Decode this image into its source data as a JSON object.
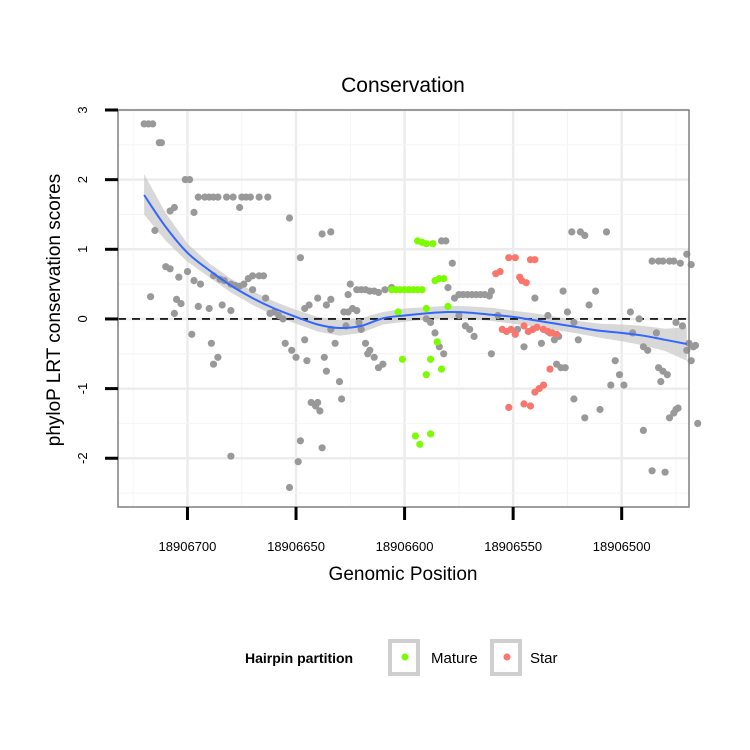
{
  "chart_data": {
    "type": "scatter",
    "title": "Conservation",
    "xlabel": "Genomic Position",
    "ylabel": "phyloP LRT conservation scores",
    "x_reversed": true,
    "xlim": [
      18906732,
      18906469
    ],
    "ylim": [
      -2.7,
      3.0
    ],
    "x_ticks": [
      18906700,
      18906650,
      18906600,
      18906550,
      18906500
    ],
    "x_tick_labels": [
      "18906700",
      "18906650",
      "18906600",
      "18906550",
      "18906500"
    ],
    "y_ticks": [
      -2,
      -1,
      0,
      1,
      2,
      3
    ],
    "y_tick_labels": [
      "-2",
      "-1",
      "0",
      "1",
      "2",
      "3"
    ],
    "grid": true,
    "reference_line": {
      "y": 0,
      "style": "dashed"
    },
    "legend": {
      "title": "Hairpin partition",
      "placement": "bottom",
      "entries": [
        {
          "label": "Mature",
          "color": "#7CFC00"
        },
        {
          "label": "Star",
          "color": "#F8766D"
        }
      ]
    },
    "colors": {
      "other": "#999999",
      "smooth_line": "#3366FF",
      "ribbon": "#cccccc"
    },
    "series": [
      {
        "name": "Other",
        "color": "#999999",
        "points": [
          [
            18906720,
            2.8
          ],
          [
            18906718,
            2.8
          ],
          [
            18906716,
            2.8
          ],
          [
            18906713,
            2.53
          ],
          [
            18906712,
            2.53
          ],
          [
            18906706,
            1.6
          ],
          [
            18906708,
            1.55
          ],
          [
            18906701,
            2.0
          ],
          [
            18906699,
            2.0
          ],
          [
            18906697,
            1.53
          ],
          [
            18906695,
            1.75
          ],
          [
            18906692,
            1.75
          ],
          [
            18906690,
            1.75
          ],
          [
            18906688,
            1.75
          ],
          [
            18906686,
            1.75
          ],
          [
            18906682,
            1.75
          ],
          [
            18906679,
            1.75
          ],
          [
            18906675,
            1.75
          ],
          [
            18906673,
            1.75
          ],
          [
            18906671,
            1.75
          ],
          [
            18906667,
            1.75
          ],
          [
            18906663,
            1.75
          ],
          [
            18906676,
            1.6
          ],
          [
            18906653,
            1.45
          ],
          [
            18906715,
            1.27
          ],
          [
            18906710,
            0.75
          ],
          [
            18906708,
            0.72
          ],
          [
            18906704,
            0.6
          ],
          [
            18906700,
            0.68
          ],
          [
            18906697,
            0.55
          ],
          [
            18906694,
            0.5
          ],
          [
            18906688,
            0.62
          ],
          [
            18906685,
            0.57
          ],
          [
            18906683,
            0.55
          ],
          [
            18906680,
            0.5
          ],
          [
            18906678,
            0.48
          ],
          [
            18906676,
            0.47
          ],
          [
            18906674,
            0.5
          ],
          [
            18906672,
            0.58
          ],
          [
            18906670,
            0.62
          ],
          [
            18906667,
            0.62
          ],
          [
            18906665,
            0.62
          ],
          [
            18906717,
            0.32
          ],
          [
            18906705,
            0.28
          ],
          [
            18906703,
            0.22
          ],
          [
            18906695,
            0.18
          ],
          [
            18906690,
            0.15
          ],
          [
            18906684,
            0.2
          ],
          [
            18906680,
            0.12
          ],
          [
            18906660,
            0.1
          ],
          [
            18906706,
            0.08
          ],
          [
            18906698,
            -0.22
          ],
          [
            18906689,
            -0.35
          ],
          [
            18906686,
            -0.55
          ],
          [
            18906688,
            -0.65
          ],
          [
            18906680,
            -1.97
          ],
          [
            18906670,
            0.42
          ],
          [
            18906664,
            0.3
          ],
          [
            18906662,
            0.08
          ],
          [
            18906658,
            0.05
          ],
          [
            18906656,
            0.0
          ],
          [
            18906655,
            -0.35
          ],
          [
            18906652,
            -0.45
          ],
          [
            18906650,
            -0.55
          ],
          [
            18906648,
            -1.75
          ],
          [
            18906649,
            -2.05
          ],
          [
            18906653,
            -2.42
          ],
          [
            18906648,
            0.88
          ],
          [
            18906646,
            -0.3
          ],
          [
            18906645,
            -0.6
          ],
          [
            18906643,
            -1.2
          ],
          [
            18906641,
            -1.25
          ],
          [
            18906640,
            -1.2
          ],
          [
            18906639,
            -1.32
          ],
          [
            18906638,
            -1.85
          ],
          [
            18906638,
            1.22
          ],
          [
            18906634,
            1.25
          ],
          [
            18906636,
            0.2
          ],
          [
            18906637,
            -0.55
          ],
          [
            18906636,
            -0.75
          ],
          [
            18906634,
            -0.15
          ],
          [
            18906632,
            -0.35
          ],
          [
            18906630,
            -0.9
          ],
          [
            18906629,
            -1.15
          ],
          [
            18906628,
            0.1
          ],
          [
            18906627,
            -0.1
          ],
          [
            18906626,
            0.1
          ],
          [
            18906624,
            0.15
          ],
          [
            18906622,
            0.12
          ],
          [
            18906621,
            -0.05
          ],
          [
            18906620,
            -0.15
          ],
          [
            18906618,
            -0.35
          ],
          [
            18906617,
            -0.5
          ],
          [
            18906616,
            -0.45
          ],
          [
            18906614,
            -0.55
          ],
          [
            18906612,
            -0.7
          ],
          [
            18906610,
            -0.65
          ],
          [
            18906622,
            0.42
          ],
          [
            18906620,
            0.42
          ],
          [
            18906618,
            0.42
          ],
          [
            18906616,
            0.4
          ],
          [
            18906614,
            0.4
          ],
          [
            18906612,
            0.38
          ],
          [
            18906609,
            0.42
          ],
          [
            18906606,
            0.45
          ],
          [
            18906640,
            0.3
          ],
          [
            18906644,
            0.2
          ],
          [
            18906646,
            0.15
          ],
          [
            18906634,
            0.28
          ],
          [
            18906626,
            0.35
          ],
          [
            18906590,
            0.0
          ],
          [
            18906588,
            -0.05
          ],
          [
            18906586,
            -0.2
          ],
          [
            18906584,
            -0.4
          ],
          [
            18906582,
            -0.5
          ],
          [
            18906583,
            1.12
          ],
          [
            18906581,
            1.12
          ],
          [
            18906578,
            0.8
          ],
          [
            18906580,
            0.45
          ],
          [
            18906577,
            0.3
          ],
          [
            18906575,
            0.35
          ],
          [
            18906573,
            0.35
          ],
          [
            18906571,
            0.35
          ],
          [
            18906569,
            0.35
          ],
          [
            18906567,
            0.35
          ],
          [
            18906565,
            0.35
          ],
          [
            18906563,
            0.35
          ],
          [
            18906561,
            0.33
          ],
          [
            18906560,
            -0.5
          ],
          [
            18906557,
            0.05
          ],
          [
            18906575,
            0.05
          ],
          [
            18906572,
            -0.1
          ],
          [
            18906570,
            -0.15
          ],
          [
            18906568,
            -0.25
          ],
          [
            18906548,
            -0.15
          ],
          [
            18906545,
            -0.4
          ],
          [
            18906540,
            0.3
          ],
          [
            18906537,
            -0.35
          ],
          [
            18906533,
            -0.2
          ],
          [
            18906531,
            -0.3
          ],
          [
            18906529,
            -0.25
          ],
          [
            18906527,
            0.4
          ],
          [
            18906525,
            0.1
          ],
          [
            18906522,
            -0.05
          ],
          [
            18906520,
            -0.3
          ],
          [
            18906523,
            1.25
          ],
          [
            18906519,
            1.25
          ],
          [
            18906517,
            1.2
          ],
          [
            18906507,
            1.25
          ],
          [
            18906530,
            -0.65
          ],
          [
            18906528,
            -0.7
          ],
          [
            18906526,
            -0.7
          ],
          [
            18906522,
            -1.15
          ],
          [
            18906517,
            -1.42
          ],
          [
            18906510,
            -1.3
          ],
          [
            18906505,
            -0.95
          ],
          [
            18906503,
            -0.6
          ],
          [
            18906501,
            -0.8
          ],
          [
            18906499,
            -0.95
          ],
          [
            18906495,
            -0.2
          ],
          [
            18906490,
            -0.4
          ],
          [
            18906488,
            -0.45
          ],
          [
            18906484,
            -0.2
          ],
          [
            18906486,
            0.83
          ],
          [
            18906483,
            0.83
          ],
          [
            18906481,
            0.83
          ],
          [
            18906478,
            0.83
          ],
          [
            18906476,
            0.83
          ],
          [
            18906473,
            0.8
          ],
          [
            18906470,
            0.93
          ],
          [
            18906468,
            0.78
          ],
          [
            18906469,
            -0.35
          ],
          [
            18906467,
            -0.4
          ],
          [
            18906466,
            -0.38
          ],
          [
            18906465,
            -1.5
          ],
          [
            18906478,
            -1.42
          ],
          [
            18906476,
            -1.35
          ],
          [
            18906475,
            -1.3
          ],
          [
            18906474,
            -1.28
          ],
          [
            18906490,
            -1.6
          ],
          [
            18906486,
            -2.18
          ],
          [
            18906480,
            -2.2
          ],
          [
            18906483,
            -0.7
          ],
          [
            18906481,
            -0.75
          ],
          [
            18906479,
            -0.8
          ],
          [
            18906482,
            -0.9
          ],
          [
            18906496,
            0.1
          ],
          [
            18906492,
            0.0
          ],
          [
            18906475,
            -0.05
          ],
          [
            18906472,
            -0.1
          ],
          [
            18906470,
            -0.45
          ],
          [
            18906468,
            -0.6
          ],
          [
            18906512,
            0.4
          ],
          [
            18906515,
            0.2
          ],
          [
            18906534,
            0.05
          ],
          [
            18906560,
            0.4
          ],
          [
            18906625,
            0.5
          ]
        ]
      },
      {
        "name": "Mature",
        "color": "#7CFC00",
        "points": [
          [
            18906606,
            0.42
          ],
          [
            18906604,
            0.42
          ],
          [
            18906602,
            0.42
          ],
          [
            18906600,
            0.42
          ],
          [
            18906598,
            0.42
          ],
          [
            18906596,
            0.42
          ],
          [
            18906594,
            0.42
          ],
          [
            18906592,
            0.42
          ],
          [
            18906603,
            0.1
          ],
          [
            18906590,
            0.15
          ],
          [
            18906594,
            1.12
          ],
          [
            18906592,
            1.1
          ],
          [
            18906590,
            1.08
          ],
          [
            18906587,
            1.08
          ],
          [
            18906586,
            0.55
          ],
          [
            18906584,
            0.58
          ],
          [
            18906582,
            0.58
          ],
          [
            18906580,
            0.18
          ],
          [
            18906601,
            -0.58
          ],
          [
            18906588,
            -0.58
          ],
          [
            18906590,
            -0.8
          ],
          [
            18906585,
            -0.33
          ],
          [
            18906583,
            -0.72
          ],
          [
            18906595,
            -1.68
          ],
          [
            18906593,
            -1.8
          ],
          [
            18906588,
            -1.65
          ]
        ]
      },
      {
        "name": "Star",
        "color": "#F8766D",
        "points": [
          [
            18906558,
            0.65
          ],
          [
            18906556,
            0.68
          ],
          [
            18906552,
            0.88
          ],
          [
            18906549,
            0.88
          ],
          [
            18906547,
            0.6
          ],
          [
            18906546,
            0.55
          ],
          [
            18906544,
            0.52
          ],
          [
            18906542,
            0.85
          ],
          [
            18906540,
            0.85
          ],
          [
            18906555,
            -0.15
          ],
          [
            18906553,
            -0.18
          ],
          [
            18906551,
            -0.15
          ],
          [
            18906549,
            -0.22
          ],
          [
            18906545,
            -0.1
          ],
          [
            18906543,
            -0.18
          ],
          [
            18906541,
            -0.15
          ],
          [
            18906539,
            -0.12
          ],
          [
            18906536,
            -0.15
          ],
          [
            18906534,
            -0.18
          ],
          [
            18906532,
            -0.2
          ],
          [
            18906530,
            -0.22
          ],
          [
            18906552,
            -1.27
          ],
          [
            18906545,
            -1.22
          ],
          [
            18906542,
            -1.25
          ],
          [
            18906540,
            -1.05
          ],
          [
            18906538,
            -1.0
          ],
          [
            18906536,
            -0.95
          ],
          [
            18906533,
            -0.72
          ]
        ]
      }
    ],
    "smooth_line": {
      "x": [
        18906720,
        18906710,
        18906700,
        18906690,
        18906680,
        18906670,
        18906660,
        18906650,
        18906640,
        18906630,
        18906620,
        18906610,
        18906600,
        18906590,
        18906580,
        18906570,
        18906560,
        18906550,
        18906540,
        18906530,
        18906520,
        18906510,
        18906500,
        18906490,
        18906480,
        18906470
      ],
      "y": [
        1.78,
        1.32,
        0.95,
        0.7,
        0.48,
        0.3,
        0.15,
        0.03,
        -0.08,
        -0.13,
        -0.1,
        0.01,
        0.05,
        0.08,
        0.1,
        0.09,
        0.06,
        0.03,
        -0.02,
        -0.07,
        -0.12,
        -0.17,
        -0.2,
        -0.24,
        -0.3,
        -0.36
      ],
      "lower": [
        1.5,
        1.12,
        0.82,
        0.6,
        0.38,
        0.2,
        0.05,
        -0.07,
        -0.18,
        -0.24,
        -0.2,
        -0.08,
        -0.04,
        -0.01,
        0.01,
        0.0,
        -0.03,
        -0.07,
        -0.11,
        -0.16,
        -0.21,
        -0.27,
        -0.32,
        -0.38,
        -0.46,
        -0.6
      ],
      "upper": [
        2.08,
        1.52,
        1.08,
        0.8,
        0.58,
        0.4,
        0.25,
        0.13,
        0.03,
        -0.02,
        0.01,
        0.1,
        0.15,
        0.17,
        0.19,
        0.18,
        0.16,
        0.12,
        0.08,
        0.03,
        -0.03,
        -0.07,
        -0.08,
        -0.1,
        -0.14,
        -0.12
      ]
    }
  }
}
